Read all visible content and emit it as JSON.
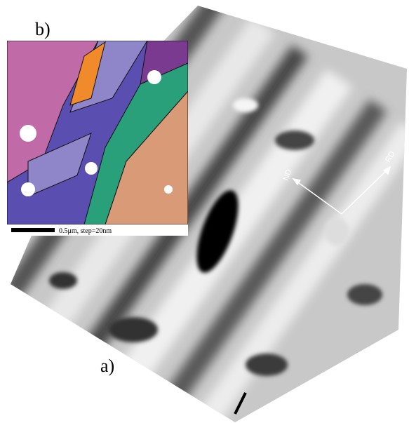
{
  "panel_labels": {
    "b": "b)",
    "a": "a)"
  },
  "directions": {
    "nd": "ND",
    "rd": "RD"
  },
  "scale_bar_label": "0.5μm, step=20nm"
}
